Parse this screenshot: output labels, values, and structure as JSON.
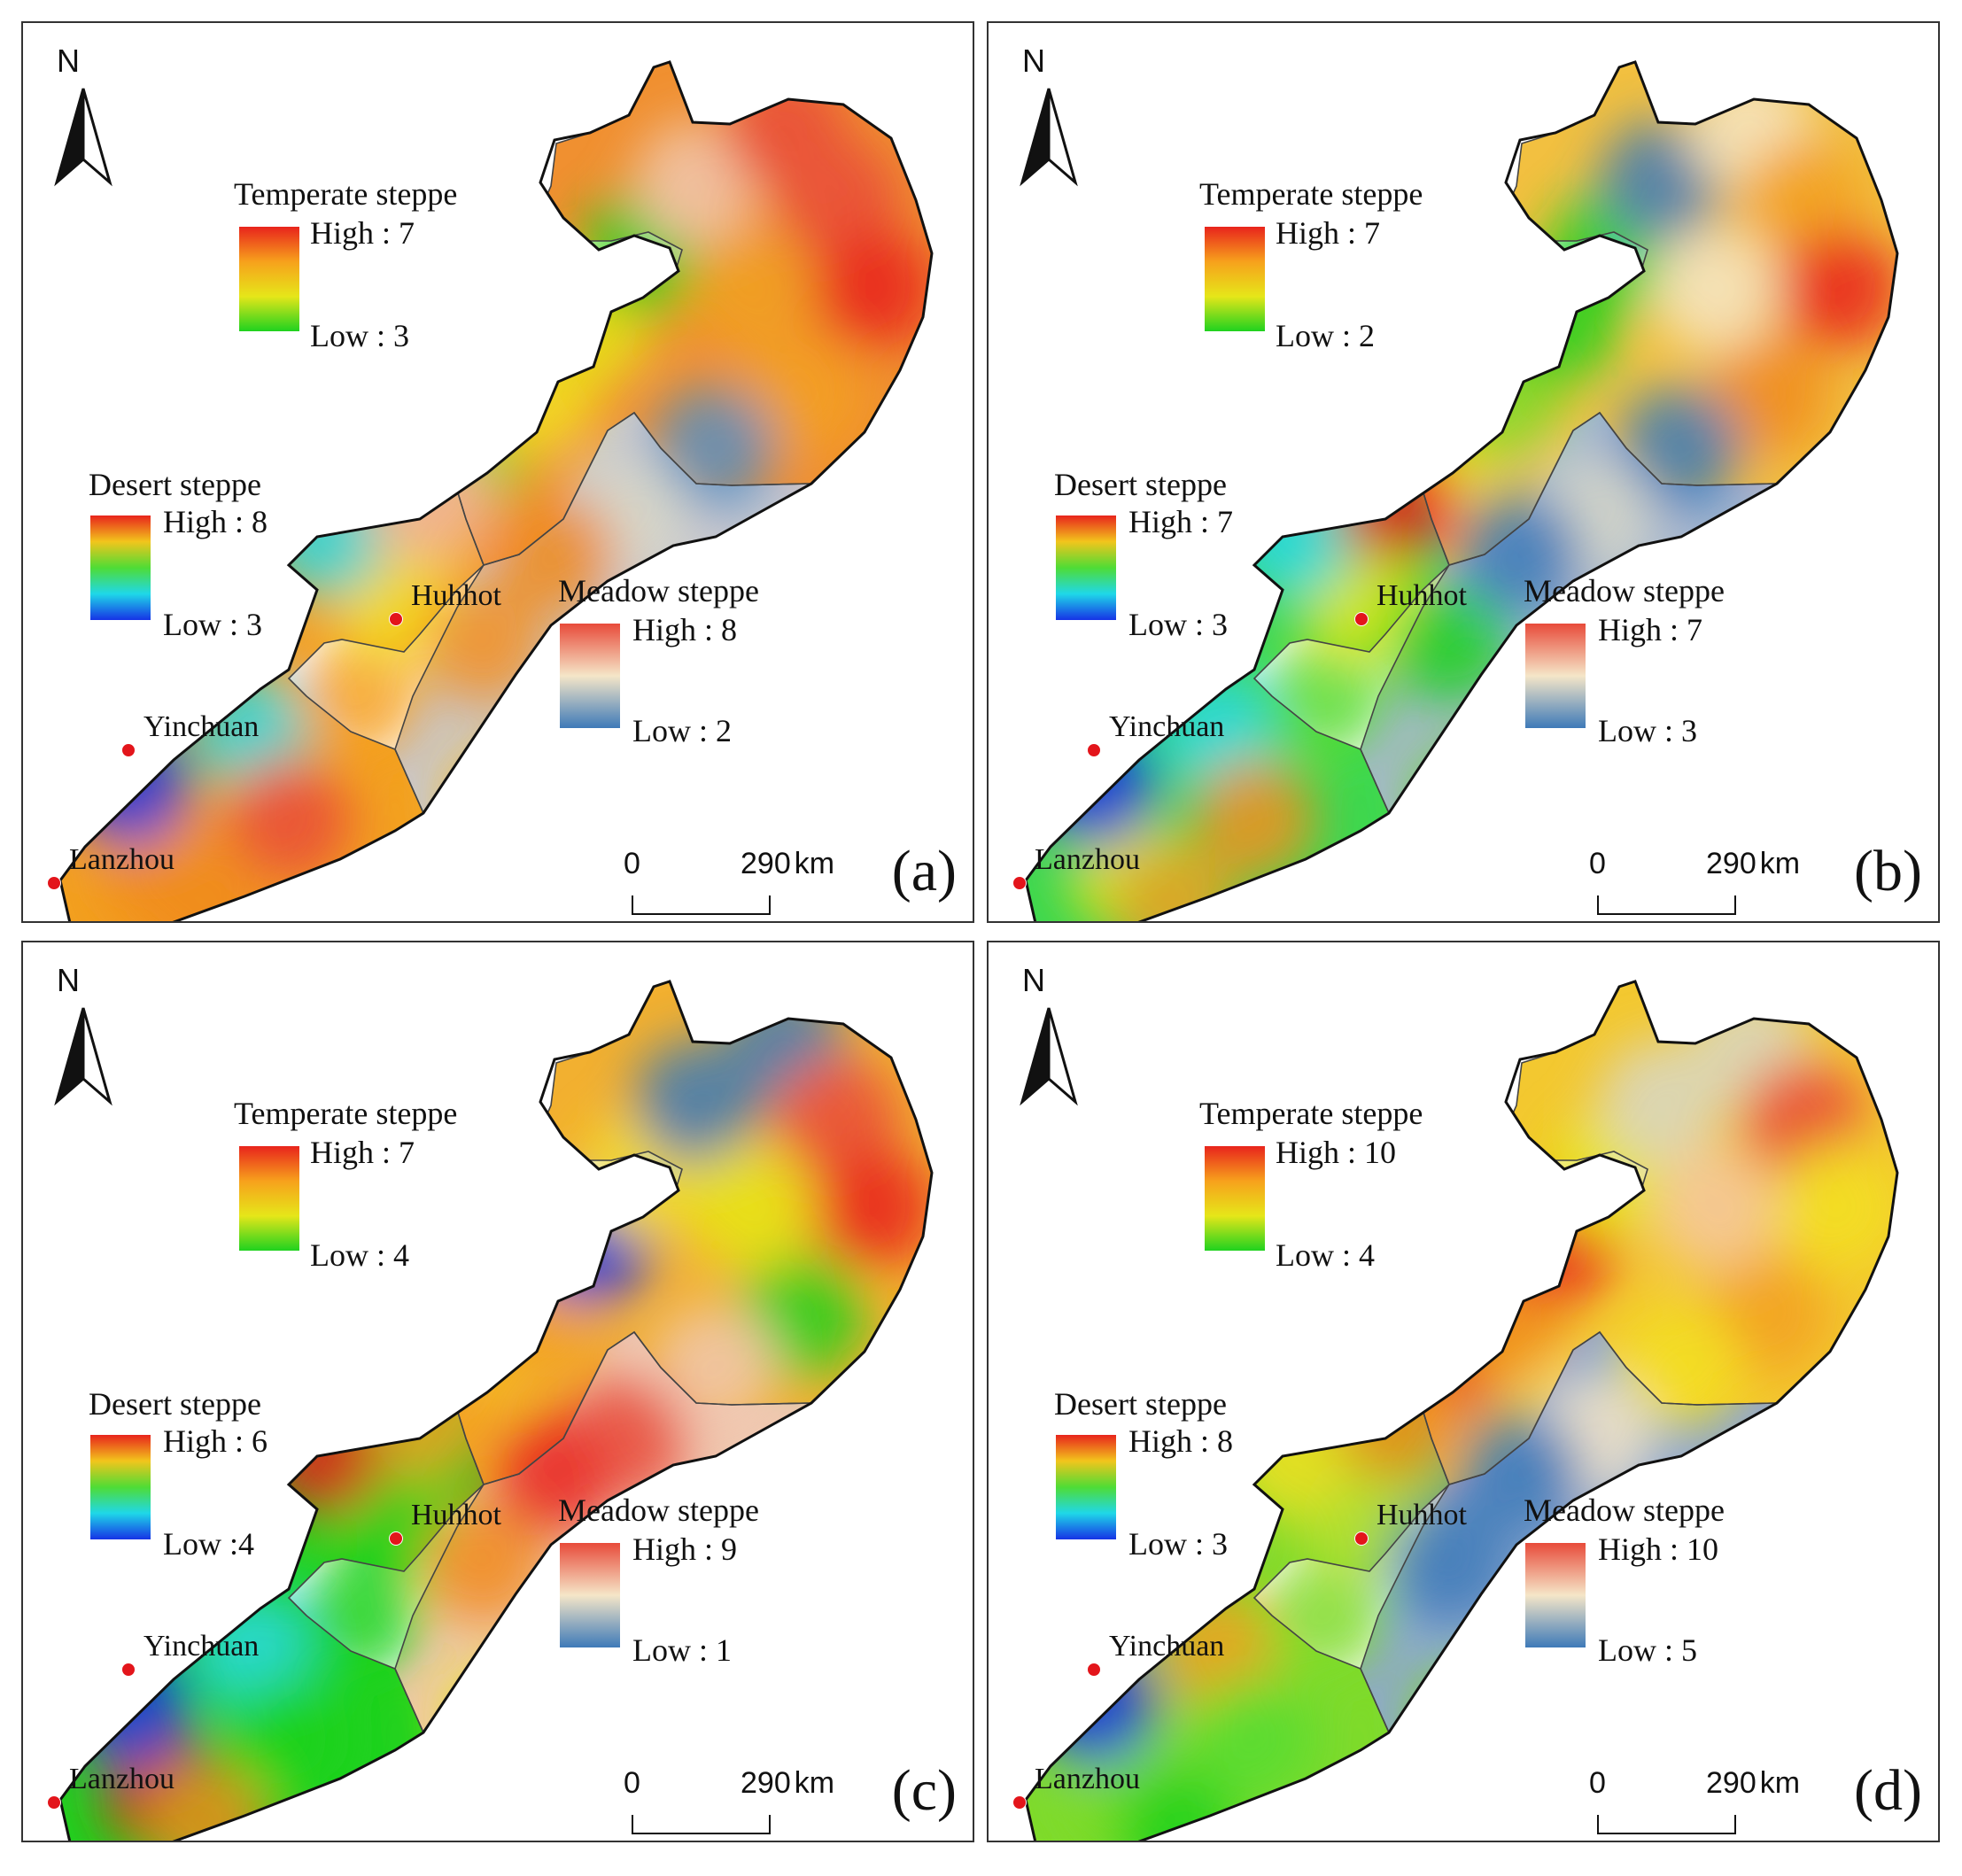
{
  "north_label": "N",
  "scale": {
    "zero": "0",
    "distance": "290",
    "unit": "km"
  },
  "cities": [
    "Huhhot",
    "Yinchuan",
    "Lanzhou"
  ],
  "legend_titles": {
    "temperate": "Temperate steppe",
    "desert": "Desert steppe",
    "meadow": "Meadow steppe"
  },
  "colors": {
    "temperate_ramp": [
      "#e8241c",
      "#f7a11c",
      "#e6e619",
      "#1fd21f"
    ],
    "desert_ramp": [
      "#e8241c",
      "#f2c51c",
      "#4fdc35",
      "#1fd8e8",
      "#1633e6"
    ],
    "meadow_ramp": [
      "#e84b3a",
      "#f5e6c8",
      "#3e7ab8"
    ],
    "city_marker": "#e3151b"
  },
  "panels": [
    {
      "label": "(a)",
      "temperate": {
        "high": "High : 7",
        "low": "Low : 3"
      },
      "desert": {
        "high": "High : 8",
        "low": "Low : 3"
      },
      "meadow": {
        "high": "High : 8",
        "low": "Low : 2"
      }
    },
    {
      "label": "(b)",
      "temperate": {
        "high": "High : 7",
        "low": "Low : 2"
      },
      "desert": {
        "high": "High : 7",
        "low": "Low : 3"
      },
      "meadow": {
        "high": "High : 7",
        "low": "Low : 3"
      }
    },
    {
      "label": "(c)",
      "temperate": {
        "high": "High : 7",
        "low": "Low : 4"
      },
      "desert": {
        "high": "High : 6",
        "low": "Low :4"
      },
      "meadow": {
        "high": "High : 9",
        "low": "Low : 1"
      }
    },
    {
      "label": "(d)",
      "temperate": {
        "high": "High : 10",
        "low": "Low : 4"
      },
      "desert": {
        "high": "High : 8",
        "low": "Low : 3"
      },
      "meadow": {
        "high": "High : 10",
        "low": "Low : 5"
      }
    }
  ]
}
